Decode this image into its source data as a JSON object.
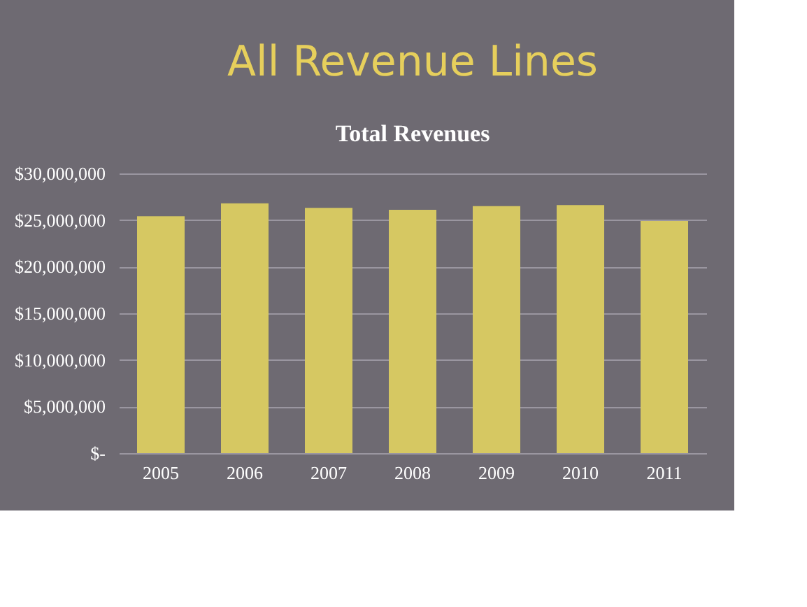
{
  "chart_data": {
    "type": "bar",
    "title": "All Revenue Lines",
    "subtitle": "Total Revenues",
    "categories": [
      "2005",
      "2006",
      "2007",
      "2008",
      "2009",
      "2010",
      "2011"
    ],
    "values": [
      25400000,
      26800000,
      26300000,
      26100000,
      26500000,
      26600000,
      24900000
    ],
    "color": "#d6c862",
    "ylim": [
      0,
      30000000
    ],
    "yticks": [
      {
        "value": 0,
        "label": "$-"
      },
      {
        "value": 5000000,
        "label": "$5,000,000"
      },
      {
        "value": 10000000,
        "label": "$10,000,000"
      },
      {
        "value": 15000000,
        "label": "$15,000,000"
      },
      {
        "value": 20000000,
        "label": "$20,000,000"
      },
      {
        "value": 25000000,
        "label": "$25,000,000"
      },
      {
        "value": 30000000,
        "label": "$30,000,000"
      }
    ],
    "grid": "y"
  }
}
